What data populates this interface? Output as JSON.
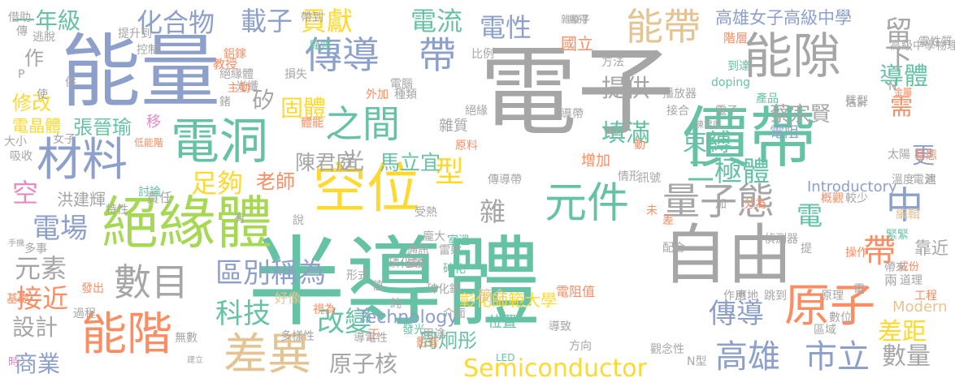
{
  "palette": {
    "gray": "#a6a6a6",
    "blue": "#8da0cb",
    "teal": "#66c2a5",
    "orange": "#fc8d62",
    "yellow": "#ffd92f",
    "tan": "#e5c494",
    "pink": "#e78ac3",
    "green": "#a6d854"
  },
  "words": [
    {
      "text": "電子",
      "color": "gray"
    },
    {
      "text": "半導體",
      "color": "teal"
    },
    {
      "text": "能量",
      "color": "blue"
    },
    {
      "text": "絕緣體",
      "color": "green"
    },
    {
      "text": "價帶",
      "color": "teal"
    },
    {
      "text": "空位",
      "color": "yellow"
    },
    {
      "text": "自由",
      "color": "gray"
    },
    {
      "text": "能隙",
      "color": "gray"
    },
    {
      "text": "電洞",
      "color": "teal"
    },
    {
      "text": "材料",
      "color": "blue"
    },
    {
      "text": "能階",
      "color": "orange"
    },
    {
      "text": "原子",
      "color": "orange"
    },
    {
      "text": "傳導",
      "color": "blue"
    },
    {
      "text": "帶",
      "color": "blue"
    },
    {
      "text": "元件",
      "color": "teal"
    },
    {
      "text": "量子態",
      "color": "gray"
    },
    {
      "text": "差異",
      "color": "tan"
    },
    {
      "text": "數目",
      "color": "gray"
    },
    {
      "text": "之間",
      "color": "teal"
    },
    {
      "text": "能帶",
      "color": "tan"
    },
    {
      "text": "Semiconductor",
      "color": "yellow"
    },
    {
      "text": "高雄",
      "color": "blue"
    },
    {
      "text": "市立",
      "color": "blue"
    },
    {
      "text": "中",
      "color": "blue"
    },
    {
      "text": "帶",
      "color": "orange"
    },
    {
      "text": "電場",
      "color": "blue"
    },
    {
      "text": "化合物",
      "color": "blue"
    },
    {
      "text": "載子",
      "color": "blue"
    },
    {
      "text": "貢獻",
      "color": "yellow"
    },
    {
      "text": "電流",
      "color": "teal"
    },
    {
      "text": "電性",
      "color": "blue"
    },
    {
      "text": "一年級",
      "color": "teal"
    },
    {
      "text": "型",
      "color": "yellow"
    },
    {
      "text": "區別稱為",
      "color": "blue"
    },
    {
      "text": "科技",
      "color": "teal"
    },
    {
      "text": "改變",
      "color": "teal"
    },
    {
      "text": "傳導",
      "color": "blue"
    },
    {
      "text": "原子核",
      "color": "gray"
    },
    {
      "text": "數量",
      "color": "gray"
    },
    {
      "text": "差距",
      "color": "yellow"
    },
    {
      "text": "導體",
      "color": "teal"
    },
    {
      "text": "二極體",
      "color": "teal"
    },
    {
      "text": "束縛",
      "color": "teal"
    },
    {
      "text": "填滿",
      "color": "teal"
    },
    {
      "text": "提供",
      "color": "gray"
    },
    {
      "text": "固體",
      "color": "yellow"
    },
    {
      "text": "足夠",
      "color": "yellow"
    },
    {
      "text": "光",
      "color": "gray"
    },
    {
      "text": "陳君庭",
      "color": "gray"
    },
    {
      "text": "馬立宜",
      "color": "teal"
    },
    {
      "text": "蔡宗賢",
      "color": "gray"
    },
    {
      "text": "雜",
      "color": "gray"
    },
    {
      "text": "接近",
      "color": "orange"
    },
    {
      "text": "元素",
      "color": "gray"
    },
    {
      "text": "設計",
      "color": "gray"
    },
    {
      "text": "商業",
      "color": "blue"
    },
    {
      "text": "留下",
      "color": "gray"
    },
    {
      "text": "周炯彤",
      "color": "teal"
    },
    {
      "text": "需",
      "color": "orange"
    },
    {
      "text": "更",
      "color": "blue"
    },
    {
      "text": "電",
      "color": "teal"
    },
    {
      "text": "空",
      "color": "pink"
    },
    {
      "text": "修改",
      "color": "yellow"
    },
    {
      "text": "張晉瑜",
      "color": "teal"
    },
    {
      "text": "作",
      "color": "gray"
    },
    {
      "text": "矽",
      "color": "gray"
    },
    {
      "text": "國立",
      "color": "orange"
    },
    {
      "text": "高雄女子高級中學",
      "color": "blue"
    },
    {
      "text": "彰化師範大學",
      "color": "yellow"
    },
    {
      "text": "老師",
      "color": "orange"
    },
    {
      "text": "靠近",
      "color": "gray"
    },
    {
      "text": "Technology",
      "color": "blue"
    },
    {
      "text": "Introductory",
      "color": "blue"
    },
    {
      "text": "Modern",
      "color": "tan"
    },
    {
      "text": "簡介",
      "color": "tan"
    },
    {
      "text": "電阻值",
      "color": "orange"
    },
    {
      "text": "增加",
      "color": "orange"
    },
    {
      "text": "電阻",
      "color": "blue"
    },
    {
      "text": "雜質",
      "color": "gray"
    },
    {
      "text": "洪建輝",
      "color": "gray"
    },
    {
      "text": "責任",
      "color": "gray"
    },
    {
      "text": "電晶體",
      "color": "yellow"
    },
    {
      "text": "N",
      "color": "gray"
    },
    {
      "text": "P",
      "color": "gray"
    },
    {
      "text": "移",
      "color": "pink"
    },
    {
      "text": "位置",
      "color": "teal"
    },
    {
      "text": "方向",
      "color": "gray"
    },
    {
      "text": "正",
      "color": "orange"
    },
    {
      "text": "視為",
      "color": "orange"
    },
    {
      "text": "好像",
      "color": "tan"
    },
    {
      "text": "形式",
      "color": "gray"
    },
    {
      "text": "教授",
      "color": "orange"
    },
    {
      "text": "階層",
      "color": "orange"
    },
    {
      "text": "編輯",
      "color": "tan"
    },
    {
      "text": "原理",
      "color": "gray"
    },
    {
      "text": "數位",
      "color": "gray"
    },
    {
      "text": "緊緊",
      "color": "teal"
    },
    {
      "text": "發光",
      "color": "teal"
    },
    {
      "text": "影音",
      "color": "orange"
    },
    {
      "text": "導電性",
      "color": "gray"
    },
    {
      "text": "LED",
      "color": "teal"
    },
    {
      "text": "N型",
      "color": "gray"
    },
    {
      "text": "doping",
      "color": "teal"
    },
    {
      "text": "到達",
      "color": "teal"
    },
    {
      "text": "播放器",
      "color": "gray"
    },
    {
      "text": "高級中學物理科",
      "color": "gray"
    },
    {
      "text": "陳君庭",
      "color": "gray"
    },
    {
      "text": "電池",
      "color": "gray"
    },
    {
      "text": "產品",
      "color": "teal"
    },
    {
      "text": "基態",
      "color": "orange"
    },
    {
      "text": "溫度",
      "color": "gray"
    },
    {
      "text": "成份",
      "color": "orange"
    },
    {
      "text": "道理",
      "color": "gray"
    },
    {
      "text": "工程",
      "color": "orange"
    },
    {
      "text": "兩",
      "color": "gray"
    },
    {
      "text": "帶來",
      "color": "gray"
    },
    {
      "text": "跳到",
      "color": "gray"
    },
    {
      "text": "作用",
      "color": "gray"
    },
    {
      "text": "應地",
      "color": "gray"
    },
    {
      "text": "區域",
      "color": "gray"
    },
    {
      "text": "雷射",
      "color": "gray"
    },
    {
      "text": "通訊",
      "color": "gray"
    },
    {
      "text": "磷化鎵",
      "color": "gray"
    },
    {
      "text": "砷化",
      "color": "teal"
    },
    {
      "text": "最少",
      "color": "gray"
    },
    {
      "text": "值",
      "color": "gray"
    },
    {
      "text": "純",
      "color": "gray"
    },
    {
      "text": "用途",
      "color": "gray"
    },
    {
      "text": "導致",
      "color": "gray"
    },
    {
      "text": "觀念性",
      "color": "gray"
    },
    {
      "text": "多樣性",
      "color": "gray"
    },
    {
      "text": "無數",
      "color": "gray"
    },
    {
      "text": "過程",
      "color": "gray"
    },
    {
      "text": "發出",
      "color": "orange"
    },
    {
      "text": "時",
      "color": "pink"
    },
    {
      "text": "建立",
      "color": "gray"
    },
    {
      "text": "多事",
      "color": "gray"
    },
    {
      "text": "基礎",
      "color": "orange"
    },
    {
      "text": "手機",
      "color": "gray"
    },
    {
      "text": "特性",
      "color": "gray"
    },
    {
      "text": "討論",
      "color": "teal"
    },
    {
      "text": "低能階",
      "color": "orange"
    },
    {
      "text": "大小",
      "color": "gray"
    },
    {
      "text": "吸收",
      "color": "gray"
    },
    {
      "text": "女子",
      "color": "gray"
    },
    {
      "text": "受熱",
      "color": "gray"
    },
    {
      "text": "原料",
      "color": "orange"
    },
    {
      "text": "傳導帶",
      "color": "gray"
    },
    {
      "text": "情形",
      "color": "gray"
    },
    {
      "text": "訊號",
      "color": "gray"
    },
    {
      "text": "絕緣",
      "color": "gray"
    },
    {
      "text": "導帶",
      "color": "gray"
    },
    {
      "text": "接合",
      "color": "gray"
    },
    {
      "text": "估計",
      "color": "gray"
    },
    {
      "text": "質型",
      "color": "gray"
    },
    {
      "text": "太陽",
      "color": "gray"
    },
    {
      "text": "操作",
      "color": "orange"
    },
    {
      "text": "分為",
      "color": "orange"
    },
    {
      "text": "偵測器",
      "color": "gray"
    },
    {
      "text": "配合",
      "color": "gray"
    },
    {
      "text": "概觀",
      "color": "orange"
    },
    {
      "text": "較少",
      "color": "gray"
    },
    {
      "text": "雜原子",
      "color": "gray"
    },
    {
      "text": "顯得",
      "color": "gray"
    },
    {
      "text": "借助",
      "color": "gray"
    },
    {
      "text": "帶到",
      "color": "gray"
    },
    {
      "text": "傳",
      "color": "gray"
    },
    {
      "text": "逃脫",
      "color": "gray"
    },
    {
      "text": "提升到",
      "color": "gray"
    },
    {
      "text": "異質",
      "color": "teal"
    },
    {
      "text": "控制",
      "color": "gray"
    },
    {
      "text": "比例",
      "color": "gray"
    },
    {
      "text": "鋁鎵",
      "color": "orange"
    },
    {
      "text": "方法",
      "color": "gray"
    },
    {
      "text": "電性質",
      "color": "gray"
    },
    {
      "text": "金屬",
      "color": "orange"
    },
    {
      "text": "供",
      "color": "gray"
    },
    {
      "text": "電腦",
      "color": "gray"
    },
    {
      "text": "光纖",
      "color": "gray"
    },
    {
      "text": "損失",
      "color": "gray"
    },
    {
      "text": "體能",
      "color": "orange"
    },
    {
      "text": "龐大",
      "color": "gray"
    },
    {
      "text": "室溫",
      "color": "teal"
    },
    {
      "text": "砷化鎵",
      "color": "gray"
    },
    {
      "text": "介面",
      "color": "gray"
    },
    {
      "text": "絕緣體",
      "color": "gray"
    },
    {
      "text": "主動",
      "color": "orange"
    },
    {
      "text": "外加",
      "color": "orange"
    },
    {
      "text": "種類",
      "color": "gray"
    },
    {
      "text": "動",
      "color": "orange"
    },
    {
      "text": "提",
      "color": "gray"
    },
    {
      "text": "加",
      "color": "gray"
    },
    {
      "text": "電",
      "color": "gray"
    },
    {
      "text": "電子",
      "color": "gray"
    },
    {
      "text": "未",
      "color": "orange"
    },
    {
      "text": "鍺",
      "color": "gray"
    },
    {
      "text": "建",
      "color": "gray"
    },
    {
      "text": "說",
      "color": "gray"
    },
    {
      "text": "差",
      "color": "orange"
    },
    {
      "text": "有",
      "color": "gray"
    },
    {
      "text": "使",
      "color": "gray"
    }
  ]
}
